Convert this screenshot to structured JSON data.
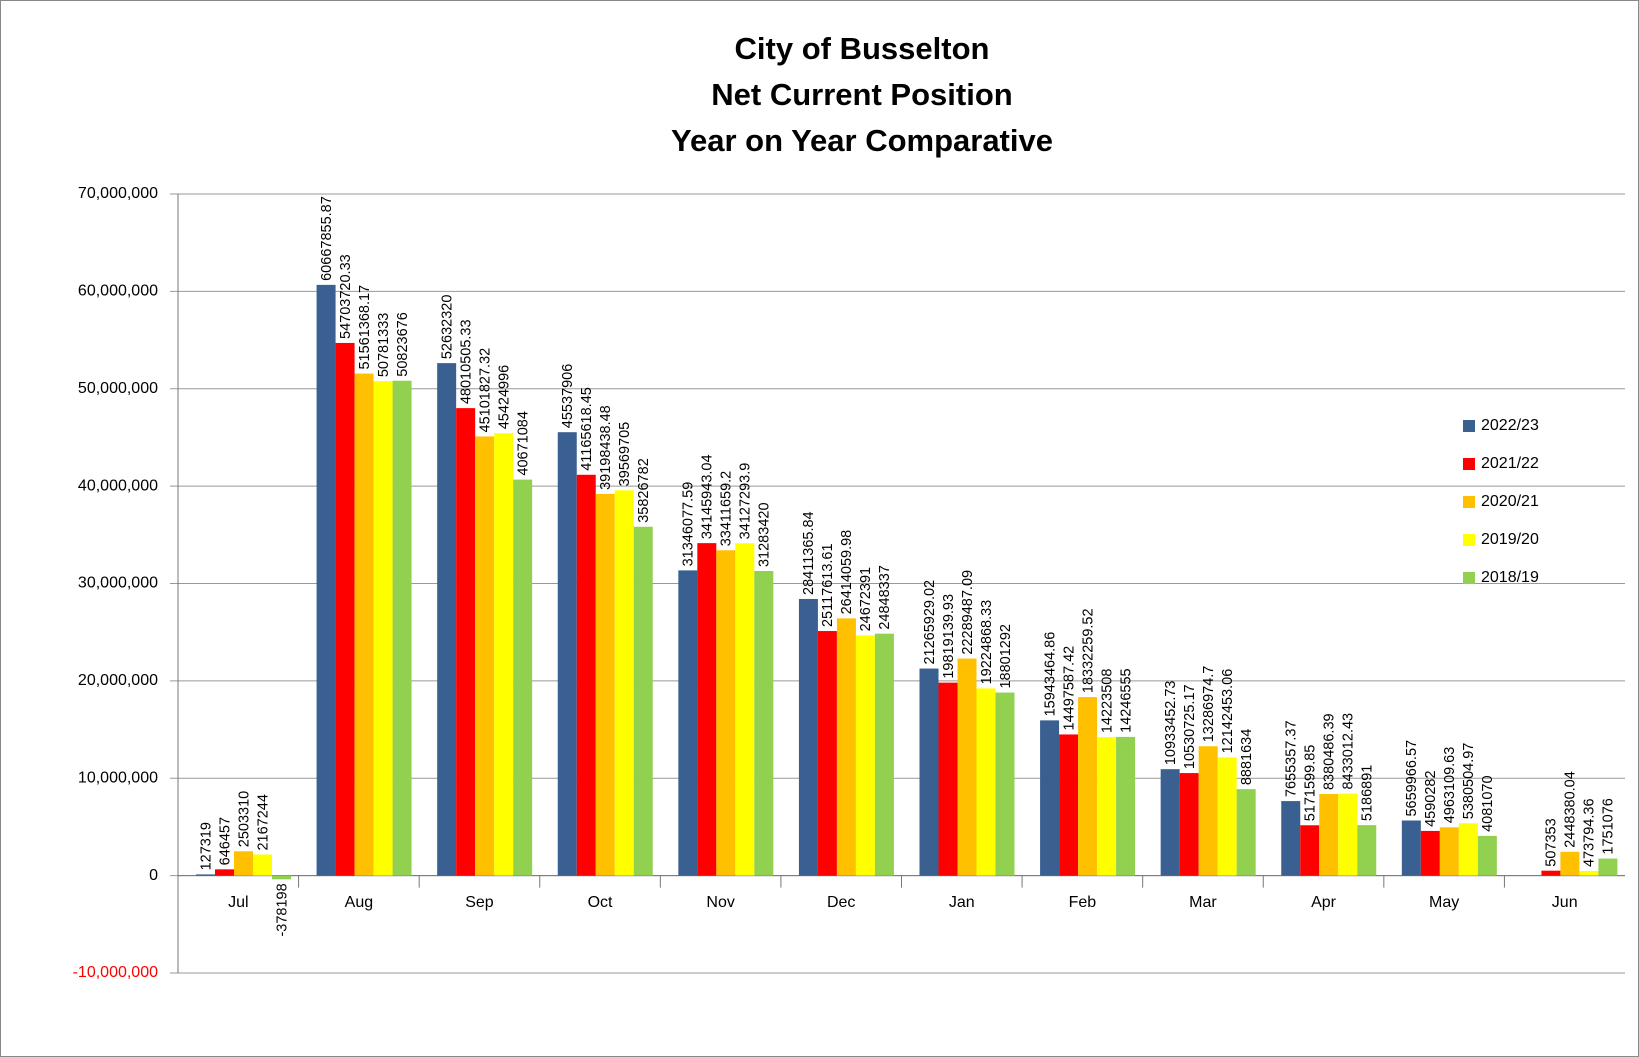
{
  "chart_data": {
    "type": "bar",
    "title": [
      "City of Busselton",
      "Net Current Position",
      "Year on Year Comparative"
    ],
    "categories": [
      "Jul",
      "Aug",
      "Sep",
      "Oct",
      "Nov",
      "Dec",
      "Jan",
      "Feb",
      "Mar",
      "Apr",
      "May",
      "Jun"
    ],
    "series": [
      {
        "name": "2022/23",
        "color": "#3a5f91",
        "values": [
          127319,
          60667855.87,
          52632320,
          45537906,
          31346077.59,
          28411365.84,
          21265929.02,
          15943464.86,
          10933452.73,
          7655357.37,
          5659966.57,
          null
        ]
      },
      {
        "name": "2021/22",
        "color": "#ff0000",
        "values": [
          646457,
          54703720.33,
          48010505.33,
          41165618.45,
          34145943.04,
          25117613.61,
          19819139.93,
          14497587.42,
          10530725.17,
          5171599.85,
          4590282,
          507353
        ]
      },
      {
        "name": "2020/21",
        "color": "#ffc000",
        "values": [
          2503310,
          51561368.17,
          45101827.32,
          39198438.48,
          33411659.2,
          26414059.98,
          22289487.09,
          18332259.52,
          13286974.7,
          8380486.39,
          4963109.63,
          2448380.04
        ]
      },
      {
        "name": "2019/20",
        "color": "#ffff00",
        "values": [
          2167244,
          50781333,
          45424996,
          39569705,
          34127293.9,
          24672391,
          19224868.33,
          14223508,
          12142453.06,
          8433012.43,
          5380504.97,
          473794.36
        ]
      },
      {
        "name": "2018/19",
        "color": "#92d050",
        "values": [
          -378198,
          50823676,
          40671084,
          35826782,
          31283420,
          24848337,
          18801292,
          14246555,
          8881634,
          5186891,
          4081070,
          1751076
        ]
      }
    ],
    "ylim": [
      -10000000,
      70000000
    ],
    "yticks": [
      {
        "value": -10000000,
        "label": "-10,000,000"
      },
      0,
      {
        "value": 10000000,
        "label": "10,000,000"
      },
      {
        "value": 20000000,
        "label": "20,000,000"
      },
      {
        "value": 30000000,
        "label": "30,000,000"
      },
      {
        "value": 40000000,
        "label": "40,000,000"
      },
      {
        "value": 50000000,
        "label": "50,000,000"
      },
      {
        "value": 60000000,
        "label": "60,000,000"
      },
      {
        "value": 70000000,
        "label": "70,000,000"
      }
    ],
    "negative_tick_color": "#ff0000",
    "grid": true,
    "legend": "right"
  }
}
